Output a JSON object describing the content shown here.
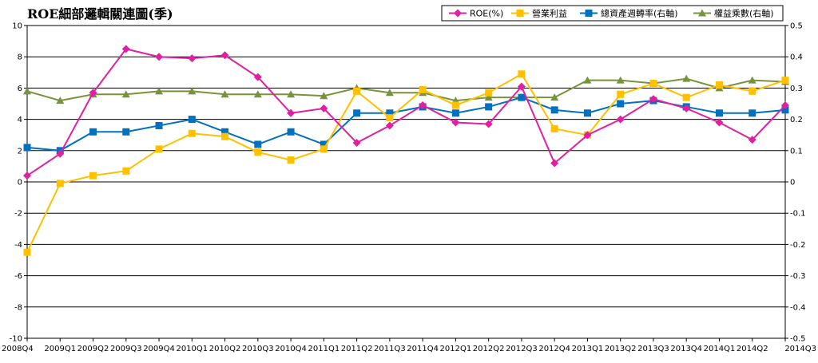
{
  "chart_data": {
    "type": "line",
    "title": "ROE細部邏輯關連圖(季)",
    "categories": [
      "2008Q4",
      "2009Q1",
      "2009Q2",
      "2009Q3",
      "2009Q4",
      "2010Q1",
      "2010Q2",
      "2010Q3",
      "2010Q4",
      "2011Q1",
      "2011Q2",
      "2011Q3",
      "2011Q4",
      "2012Q1",
      "2012Q2",
      "2012Q3",
      "2012Q4",
      "2013Q1",
      "2013Q2",
      "2013Q3",
      "2013Q4",
      "2014Q1",
      "2014Q2",
      "2014Q3"
    ],
    "y_left": {
      "min": -10,
      "max": 10,
      "step": 2
    },
    "y_right": {
      "min": -0.5,
      "max": 0.5,
      "step": 0.1
    },
    "grid": true,
    "legend_position": "top-right",
    "series": [
      {
        "name": "ROE(%)",
        "axis": "left",
        "color": "#e020a0",
        "marker": "diamond",
        "values": [
          0.4,
          1.8,
          5.7,
          8.5,
          8.0,
          7.9,
          8.1,
          6.7,
          4.4,
          4.7,
          2.5,
          3.6,
          4.9,
          3.8,
          3.7,
          6.1,
          1.2,
          3.0,
          4.0,
          5.3,
          4.7,
          3.8,
          2.7,
          4.9
        ]
      },
      {
        "name": "營業利益",
        "axis": "left",
        "color": "#ffc000",
        "marker": "square",
        "values": [
          -4.5,
          -0.1,
          0.4,
          0.7,
          2.1,
          3.1,
          2.9,
          1.9,
          1.4,
          2.1,
          5.8,
          4.1,
          5.9,
          4.9,
          5.7,
          6.9,
          3.4,
          3.0,
          5.6,
          6.3,
          5.4,
          6.2,
          5.8,
          6.5
        ]
      },
      {
        "name": "總資產週轉率(右軸)",
        "axis": "right",
        "color": "#0070c0",
        "marker": "square",
        "values": [
          0.11,
          0.1,
          0.16,
          0.16,
          0.18,
          0.2,
          0.16,
          0.12,
          0.16,
          0.12,
          0.22,
          0.22,
          0.24,
          0.22,
          0.24,
          0.27,
          0.23,
          0.22,
          0.25,
          0.26,
          0.24,
          0.22,
          0.22,
          0.23
        ]
      },
      {
        "name": "權益乘數(右軸)",
        "axis": "right",
        "color": "#77933c",
        "marker": "triangle",
        "values": [
          0.29,
          0.26,
          0.28,
          0.28,
          0.29,
          0.29,
          0.28,
          0.28,
          0.28,
          0.275,
          0.3,
          0.285,
          0.285,
          0.26,
          0.27,
          0.27,
          0.27,
          0.325,
          0.325,
          0.315,
          0.33,
          0.3,
          0.325,
          0.32
        ]
      }
    ]
  }
}
